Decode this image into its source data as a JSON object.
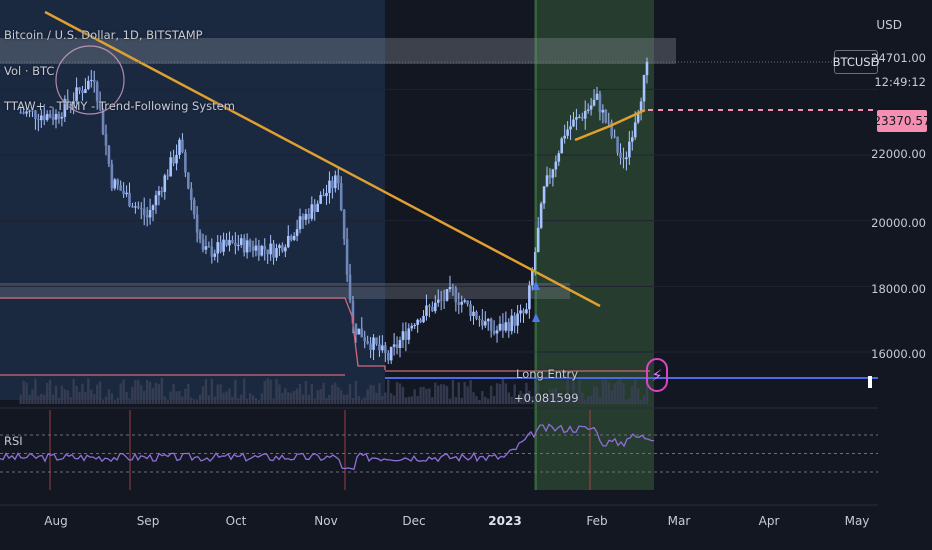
{
  "header": {
    "legend_title": "Bitcoin / U.S. Dollar, 1D, BITSTAMP",
    "legend_volume": "Vol · BTC",
    "legend_strategy": "TTAW+ - TTMY - Trend-Following System"
  },
  "price_axis": {
    "currency": "USD",
    "symbol": "BTCUSD",
    "last_price": "24701.00",
    "countdown": "12:49:12",
    "marked_price": "23370.57",
    "ticks": [
      "22000.00",
      "20000.00",
      "18000.00",
      "16000.00"
    ]
  },
  "time_axis": {
    "labels": [
      "Aug",
      "Sep",
      "Oct",
      "Nov",
      "Dec",
      "2023",
      "Feb",
      "Mar",
      "Apr",
      "May"
    ]
  },
  "rsi_panel": {
    "label": "RSI"
  },
  "trade": {
    "entry_label": "Long Entry",
    "entry_qty": "+0.081599"
  },
  "colors": {
    "background": "#131722",
    "candle": "#a8c4ff",
    "trendline": "#e0a030",
    "rsi_line": "#8f6fd8",
    "target_line": "#f48fb1",
    "entry_zone": "#2e4a34",
    "history_zone": "#1c2a44"
  },
  "chart_data": {
    "type": "candlestick",
    "symbol": "Bitcoin / U.S. Dollar",
    "interval": "1D",
    "exchange": "BITSTAMP",
    "y_axis_ticks": [
      16000,
      18000,
      20000,
      22000,
      24000
    ],
    "ylim": [
      15000,
      25500
    ],
    "x_axis_months": [
      "Aug",
      "Sep",
      "Oct",
      "Nov",
      "Dec",
      "2023",
      "Feb",
      "Mar",
      "Apr",
      "May"
    ],
    "approx_close_path": [
      {
        "date": "2022-07-20",
        "close": 23300
      },
      {
        "date": "2022-08-01",
        "close": 23200
      },
      {
        "date": "2022-08-14",
        "close": 24400
      },
      {
        "date": "2022-08-20",
        "close": 21200
      },
      {
        "date": "2022-09-01",
        "close": 20100
      },
      {
        "date": "2022-09-12",
        "close": 22300
      },
      {
        "date": "2022-09-20",
        "close": 19000
      },
      {
        "date": "2022-10-01",
        "close": 19300
      },
      {
        "date": "2022-10-15",
        "close": 19100
      },
      {
        "date": "2022-11-05",
        "close": 21300
      },
      {
        "date": "2022-11-10",
        "close": 16800
      },
      {
        "date": "2022-11-22",
        "close": 15800
      },
      {
        "date": "2022-12-01",
        "close": 17000
      },
      {
        "date": "2022-12-14",
        "close": 17800
      },
      {
        "date": "2022-12-28",
        "close": 16600
      },
      {
        "date": "2023-01-08",
        "close": 17200
      },
      {
        "date": "2023-01-14",
        "close": 20900
      },
      {
        "date": "2023-01-21",
        "close": 22700
      },
      {
        "date": "2023-02-01",
        "close": 23700
      },
      {
        "date": "2023-02-10",
        "close": 21700
      },
      {
        "date": "2023-02-18",
        "close": 24600
      }
    ],
    "levels": {
      "last": 24701.0,
      "marked": 23370.57
    },
    "rsi": {
      "upper": 70,
      "middle": 50,
      "lower": 30
    }
  }
}
